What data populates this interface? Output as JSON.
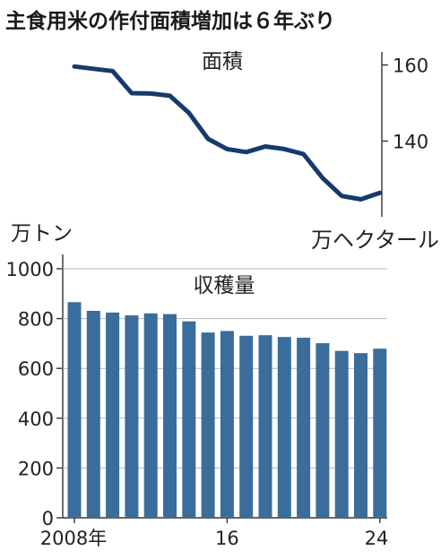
{
  "title": "主食用米の作付面積増加は６年ぶり",
  "chart_data": [
    {
      "type": "line",
      "title": "面積",
      "unit": "万ヘクタール",
      "x": [
        2008,
        2009,
        2010,
        2011,
        2012,
        2013,
        2014,
        2015,
        2016,
        2017,
        2018,
        2019,
        2020,
        2021,
        2022,
        2023,
        2024
      ],
      "values": [
        159.6,
        159.0,
        158.4,
        152.6,
        152.5,
        151.9,
        147.4,
        140.6,
        137.9,
        137.1,
        138.6,
        137.9,
        136.6,
        130.3,
        125.6,
        124.7,
        126.4
      ],
      "ylim": [
        122,
        162
      ],
      "yticks": [
        "160",
        "140"
      ],
      "color": "#163a6b"
    },
    {
      "type": "bar",
      "title": "収穫量",
      "unit": "万トン",
      "categories": [
        2008,
        2009,
        2010,
        2011,
        2012,
        2013,
        2014,
        2015,
        2016,
        2017,
        2018,
        2019,
        2020,
        2021,
        2022,
        2023,
        2024
      ],
      "values": [
        866,
        831,
        824,
        813,
        821,
        818,
        789,
        744,
        750,
        731,
        733,
        726,
        723,
        701,
        670,
        661,
        679
      ],
      "ylim": [
        0,
        1000
      ],
      "yticks": [
        "0",
        "200",
        "400",
        "600",
        "800",
        "1000"
      ],
      "xticks": [
        "2008年",
        "16",
        "24"
      ],
      "color": "#3a6d9c"
    }
  ]
}
